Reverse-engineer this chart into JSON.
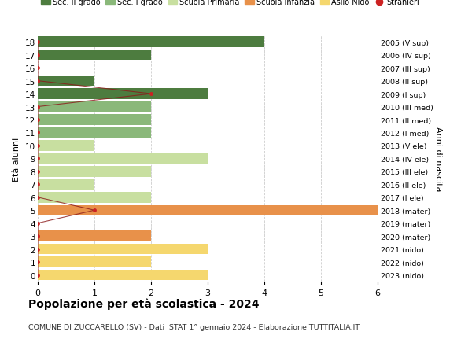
{
  "ages": [
    0,
    1,
    2,
    3,
    4,
    5,
    6,
    7,
    8,
    9,
    10,
    11,
    12,
    13,
    14,
    15,
    16,
    17,
    18
  ],
  "values": [
    3,
    2,
    3,
    2,
    0,
    6,
    2,
    1,
    2,
    3,
    1,
    2,
    2,
    2,
    3,
    1,
    0,
    2,
    4
  ],
  "bar_colors": [
    "#f5d76e",
    "#f5d76e",
    "#f5d76e",
    "#e8914a",
    "#e8914a",
    "#e8914a",
    "#c8dfa0",
    "#c8dfa0",
    "#c8dfa0",
    "#c8dfa0",
    "#c8dfa0",
    "#8ab87a",
    "#8ab87a",
    "#8ab87a",
    "#4d7c3f",
    "#4d7c3f",
    "#4d7c3f",
    "#4d7c3f",
    "#4d7c3f"
  ],
  "stranieri_dot_x": [
    0,
    0,
    0,
    0,
    0,
    1,
    0,
    0,
    0,
    0,
    0,
    0,
    0,
    0,
    2,
    0,
    0,
    0,
    0
  ],
  "right_labels": [
    "2023 (nido)",
    "2022 (nido)",
    "2021 (nido)",
    "2020 (mater)",
    "2019 (mater)",
    "2018 (mater)",
    "2017 (I ele)",
    "2016 (II ele)",
    "2015 (III ele)",
    "2014 (IV ele)",
    "2013 (V ele)",
    "2012 (I med)",
    "2011 (II med)",
    "2010 (III med)",
    "2009 (I sup)",
    "2008 (II sup)",
    "2007 (III sup)",
    "2006 (IV sup)",
    "2005 (V sup)"
  ],
  "legend_labels": [
    "Sec. II grado",
    "Sec. I grado",
    "Scuola Primaria",
    "Scuola Infanzia",
    "Asilo Nido",
    "Stranieri"
  ],
  "legend_colors": [
    "#4d7c3f",
    "#8ab87a",
    "#c8dfa0",
    "#e8914a",
    "#f5d76e",
    "#cc2222"
  ],
  "title": "Popolazione per età scolastica - 2024",
  "subtitle": "COMUNE DI ZUCCARELLO (SV) - Dati ISTAT 1° gennaio 2024 - Elaborazione TUTTITALIA.IT",
  "ylabel": "Età alunni",
  "ylabel_right": "Anni di nascita",
  "xlim": [
    0,
    6
  ],
  "ylim": [
    -0.5,
    18.5
  ],
  "bg_color": "#ffffff",
  "grid_color": "#cccccc"
}
